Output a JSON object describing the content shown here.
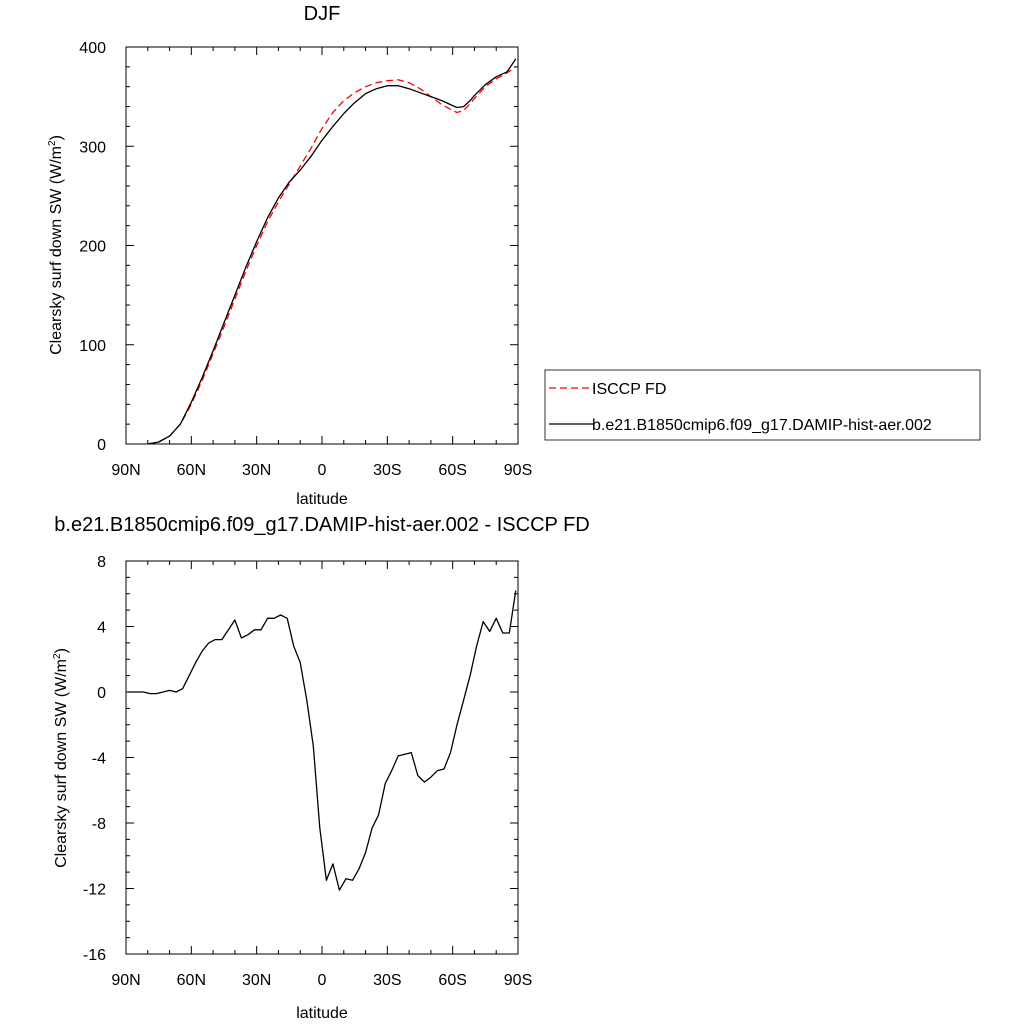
{
  "chart_data": [
    {
      "type": "line",
      "title": "DJF",
      "xlabel": "latitude",
      "ylabel_main": "Clearsky surf down SW (W/m",
      "ylabel_sup": "2",
      "ylabel_close": ")",
      "x_domain": [
        -90,
        90
      ],
      "x_ticks": [
        {
          "value": -90,
          "label": "90N"
        },
        {
          "value": -60,
          "label": "60N"
        },
        {
          "value": -30,
          "label": "30N"
        },
        {
          "value": 0,
          "label": "0"
        },
        {
          "value": 30,
          "label": "30S"
        },
        {
          "value": 60,
          "label": "60S"
        },
        {
          "value": 90,
          "label": "90S"
        }
      ],
      "ylim": [
        0,
        400
      ],
      "y_ticks": [
        {
          "value": 0,
          "label": "0"
        },
        {
          "value": 100,
          "label": "100"
        },
        {
          "value": 200,
          "label": "200"
        },
        {
          "value": 300,
          "label": "300"
        },
        {
          "value": 400,
          "label": "400"
        }
      ],
      "grid": false,
      "legend_position": "right",
      "series": [
        {
          "name": "ISCCP FD",
          "color": "#ff0000",
          "style": "dashed",
          "x": [
            -80,
            -75,
            -70,
            -65,
            -60,
            -55,
            -50,
            -45,
            -40,
            -35,
            -30,
            -25,
            -20,
            -15,
            -10,
            -5,
            0,
            5,
            10,
            15,
            20,
            25,
            30,
            35,
            40,
            45,
            50,
            55,
            60,
            62,
            65,
            68,
            70,
            75,
            80,
            85,
            89
          ],
          "y": [
            0,
            2,
            8,
            20,
            40,
            64,
            91,
            118,
            146,
            174,
            200,
            224,
            244,
            262,
            280,
            298,
            318,
            334,
            346,
            354,
            360,
            364,
            366,
            367,
            364,
            358,
            350,
            342,
            336,
            334,
            336,
            343,
            348,
            360,
            368,
            374,
            380
          ]
        },
        {
          "name": "b.e21.B1850cmip6.f09_g17.DAMIP-hist-aer.002",
          "color": "#000000",
          "style": "solid",
          "x": [
            -80,
            -75,
            -70,
            -65,
            -60,
            -55,
            -50,
            -45,
            -40,
            -35,
            -30,
            -25,
            -20,
            -15,
            -10,
            -5,
            0,
            5,
            10,
            15,
            20,
            25,
            30,
            35,
            40,
            45,
            50,
            55,
            60,
            62,
            65,
            68,
            70,
            75,
            80,
            85,
            89
          ],
          "y": [
            0,
            2,
            8,
            20,
            42,
            67,
            94,
            122,
            150,
            178,
            204,
            228,
            248,
            264,
            276,
            290,
            306,
            320,
            333,
            344,
            353,
            358,
            361,
            361,
            358,
            354,
            350,
            346,
            341,
            339,
            340,
            346,
            351,
            362,
            370,
            375,
            388
          ]
        }
      ]
    },
    {
      "type": "line",
      "title": "b.e21.B1850cmip6.f09_g17.DAMIP-hist-aer.002 - ISCCP FD",
      "xlabel": "latitude",
      "ylabel_main": "Clearsky surf down SW (W/m",
      "ylabel_sup": "2",
      "ylabel_close": ")",
      "x_domain": [
        -90,
        90
      ],
      "x_ticks": [
        {
          "value": -90,
          "label": "90N"
        },
        {
          "value": -60,
          "label": "60N"
        },
        {
          "value": -30,
          "label": "30N"
        },
        {
          "value": 0,
          "label": "0"
        },
        {
          "value": 30,
          "label": "30S"
        },
        {
          "value": 60,
          "label": "60S"
        },
        {
          "value": 90,
          "label": "90S"
        }
      ],
      "ylim": [
        -16,
        8
      ],
      "y_ticks": [
        {
          "value": -16,
          "label": "-16"
        },
        {
          "value": -12,
          "label": "-12"
        },
        {
          "value": -8,
          "label": "-8"
        },
        {
          "value": -4,
          "label": "-4"
        },
        {
          "value": 0,
          "label": "0"
        },
        {
          "value": 4,
          "label": "4"
        },
        {
          "value": 8,
          "label": "8"
        }
      ],
      "grid": false,
      "series": [
        {
          "color": "#000000",
          "style": "solid",
          "x": [
            -89,
            -85,
            -82,
            -79,
            -76,
            -73,
            -70,
            -67,
            -64,
            -61,
            -58,
            -55,
            -52,
            -49,
            -46,
            -43,
            -40,
            -37,
            -34,
            -31,
            -28,
            -25,
            -22,
            -19,
            -16,
            -13,
            -10,
            -7,
            -4,
            -1,
            2,
            5,
            8,
            11,
            14,
            17,
            20,
            23,
            26,
            29,
            32,
            35,
            38,
            41,
            44,
            47,
            50,
            53,
            56,
            59,
            62,
            65,
            68,
            71,
            74,
            77,
            80,
            83,
            86,
            89
          ],
          "y": [
            0,
            0,
            0,
            -0.1,
            -0.1,
            0,
            0.1,
            0,
            0.2,
            1,
            1.8,
            2.5,
            3,
            3.2,
            3.2,
            3.8,
            4.4,
            3.3,
            3.5,
            3.8,
            3.8,
            4.5,
            4.5,
            4.7,
            4.5,
            2.8,
            1.8,
            -0.5,
            -3.3,
            -8.3,
            -11.5,
            -10.5,
            -12.1,
            -11.4,
            -11.5,
            -10.8,
            -9.8,
            -8.3,
            -7.5,
            -5.6,
            -4.8,
            -3.9,
            -3.8,
            -3.7,
            -5.1,
            -5.5,
            -5.2,
            -4.8,
            -4.7,
            -3.7,
            -2,
            -0.5,
            1,
            2.8,
            4.3,
            3.7,
            4.5,
            3.6,
            3.6,
            6.2
          ]
        }
      ]
    }
  ]
}
